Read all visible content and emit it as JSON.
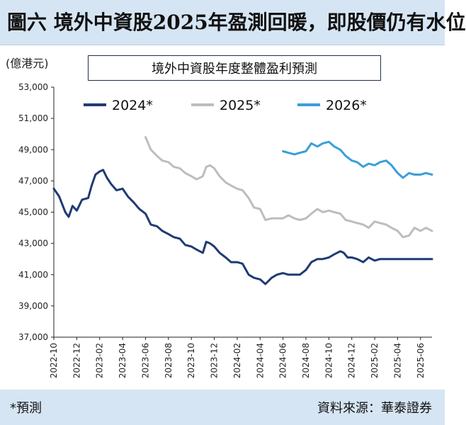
{
  "header": {
    "title": "圖六 境外中資股2025年盈測回暖，即股價仍有水位"
  },
  "chart_data": {
    "type": "line",
    "title": "境外中資股年度整體盈利預測",
    "ylabel": "(億港元)",
    "xlabel": "",
    "ylim": [
      37000,
      53000
    ],
    "yticks": [
      37000,
      39000,
      41000,
      43000,
      45000,
      47000,
      49000,
      51000,
      53000
    ],
    "ytick_labels": [
      "37,000",
      "39,000",
      "41,000",
      "43,000",
      "45,000",
      "47,000",
      "49,000",
      "51,000",
      "53,000"
    ],
    "xlim": [
      "2022-10",
      "2025-07"
    ],
    "xtick_labels": [
      "2022-10",
      "2022-12",
      "2023-02",
      "2023-04",
      "2023-06",
      "2023-08",
      "2023-10",
      "2023-12",
      "2024-02",
      "2024-04",
      "2024-06",
      "2024-08",
      "2024-10",
      "2024-12",
      "2025-02",
      "2025-04",
      "2025-06"
    ],
    "grid": false,
    "legend_position": "top",
    "series": [
      {
        "name": "2024*",
        "color": "#1f3b73",
        "x": [
          "2022-10",
          "2022-10-15",
          "2022-11",
          "2022-11-10",
          "2022-11-20",
          "2022-12",
          "2022-12-15",
          "2023-01",
          "2023-01-10",
          "2023-01-20",
          "2023-02",
          "2023-02-10",
          "2023-02-20",
          "2023-03",
          "2023-03-15",
          "2023-04",
          "2023-04-15",
          "2023-05",
          "2023-05-15",
          "2023-06",
          "2023-06-15",
          "2023-07",
          "2023-07-15",
          "2023-08",
          "2023-08-15",
          "2023-09",
          "2023-09-15",
          "2023-10",
          "2023-10-15",
          "2023-11",
          "2023-11-10",
          "2023-11-20",
          "2023-12",
          "2023-12-15",
          "2024-01",
          "2024-01-15",
          "2024-02",
          "2024-02-15",
          "2024-03",
          "2024-03-15",
          "2024-04",
          "2024-04-15",
          "2024-05",
          "2024-05-15",
          "2024-06",
          "2024-06-15",
          "2024-07",
          "2024-07-15",
          "2024-08",
          "2024-08-15",
          "2024-09",
          "2024-09-15",
          "2024-10",
          "2024-10-15",
          "2024-11",
          "2024-11-10",
          "2024-11-20",
          "2024-12",
          "2024-12-15",
          "2025-01",
          "2025-01-15",
          "2025-02",
          "2025-02-15",
          "2025-03",
          "2025-03-15",
          "2025-04",
          "2025-04-15",
          "2025-05",
          "2025-05-15",
          "2025-06",
          "2025-06-15",
          "2025-07"
        ],
        "values": [
          46500,
          46000,
          45000,
          44700,
          45400,
          45100,
          45800,
          45900,
          46700,
          47400,
          47600,
          47700,
          47200,
          46800,
          46400,
          46500,
          46000,
          45600,
          45200,
          44900,
          44200,
          44100,
          43800,
          43600,
          43400,
          43300,
          42900,
          42800,
          42600,
          42400,
          43100,
          43000,
          42800,
          42400,
          42100,
          41800,
          41800,
          41700,
          41000,
          40800,
          40700,
          40400,
          40800,
          41000,
          41100,
          41000,
          41000,
          41000,
          41300,
          41800,
          42000,
          42000,
          42100,
          42300,
          42500,
          42400,
          42100,
          42100,
          42000,
          41800,
          42100,
          41900,
          42000,
          42000,
          42000,
          42000,
          42000,
          42000,
          42000,
          42000,
          42000,
          42000
        ]
      },
      {
        "name": "2025*",
        "color": "#bdbdbd",
        "x": [
          "2023-06",
          "2023-06-15",
          "2023-07",
          "2023-07-15",
          "2023-08",
          "2023-08-15",
          "2023-09",
          "2023-09-15",
          "2023-10",
          "2023-10-15",
          "2023-11",
          "2023-11-10",
          "2023-11-20",
          "2023-12",
          "2023-12-15",
          "2024-01",
          "2024-01-15",
          "2024-02",
          "2024-02-15",
          "2024-03",
          "2024-03-15",
          "2024-04",
          "2024-04-15",
          "2024-05",
          "2024-05-15",
          "2024-06",
          "2024-06-15",
          "2024-07",
          "2024-07-15",
          "2024-08",
          "2024-08-15",
          "2024-09",
          "2024-09-15",
          "2024-10",
          "2024-10-15",
          "2024-11",
          "2024-11-15",
          "2024-12",
          "2024-12-15",
          "2025-01",
          "2025-01-15",
          "2025-02",
          "2025-02-15",
          "2025-03",
          "2025-03-15",
          "2025-04",
          "2025-04-15",
          "2025-05",
          "2025-05-15",
          "2025-06",
          "2025-06-15",
          "2025-07"
        ],
        "values": [
          49800,
          49000,
          48600,
          48300,
          48200,
          47900,
          47800,
          47500,
          47300,
          47100,
          47300,
          47900,
          48000,
          47800,
          47300,
          46900,
          46700,
          46500,
          46400,
          45900,
          45300,
          45200,
          44500,
          44600,
          44600,
          44600,
          44800,
          44600,
          44500,
          44600,
          44900,
          45200,
          45000,
          45100,
          45000,
          44900,
          44500,
          44400,
          44300,
          44200,
          44000,
          44400,
          44300,
          44200,
          44000,
          43800,
          43400,
          43500,
          44000,
          43800,
          44000,
          43800
        ]
      },
      {
        "name": "2026*",
        "color": "#3a9fd8",
        "x": [
          "2024-06",
          "2024-06-15",
          "2024-07",
          "2024-07-15",
          "2024-08",
          "2024-08-15",
          "2024-09",
          "2024-09-15",
          "2024-10",
          "2024-10-15",
          "2024-11",
          "2024-11-15",
          "2024-12",
          "2024-12-15",
          "2025-01",
          "2025-01-15",
          "2025-02",
          "2025-02-15",
          "2025-03",
          "2025-03-15",
          "2025-04",
          "2025-04-15",
          "2025-05",
          "2025-05-15",
          "2025-06",
          "2025-06-15",
          "2025-07"
        ],
        "values": [
          48900,
          48800,
          48700,
          48800,
          48900,
          49400,
          49200,
          49400,
          49500,
          49200,
          49000,
          48600,
          48300,
          48200,
          47900,
          48100,
          48000,
          48200,
          48300,
          48000,
          47500,
          47200,
          47500,
          47400,
          47400,
          47500,
          47400
        ]
      }
    ]
  },
  "footer": {
    "note": "*預測",
    "source": "資料來源：華泰證券"
  }
}
